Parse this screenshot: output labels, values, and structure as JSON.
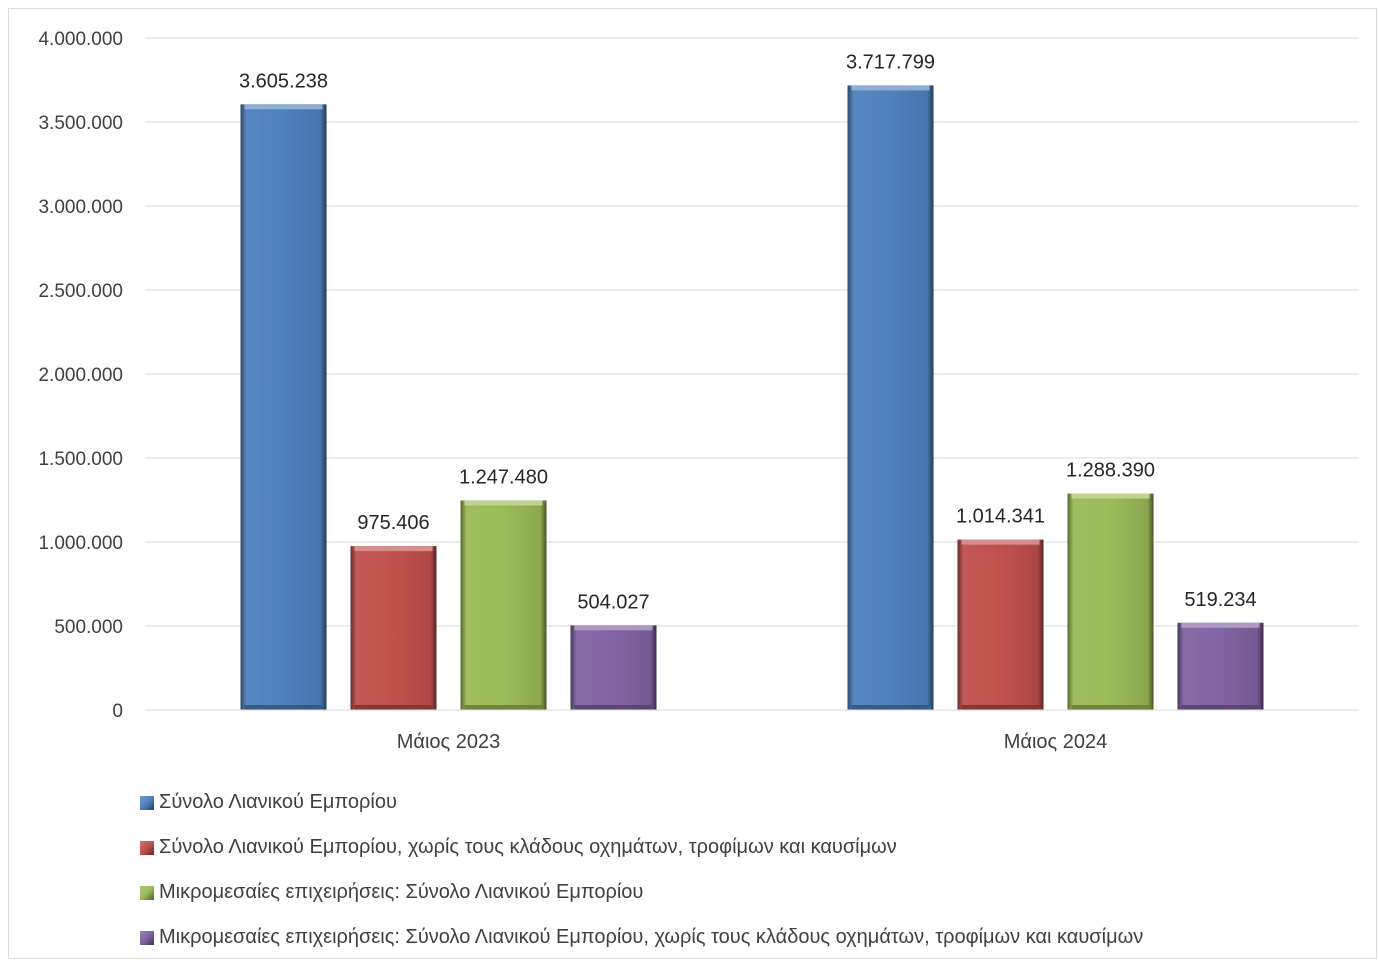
{
  "chart_data": {
    "type": "bar",
    "categories": [
      "Μάιος 2023",
      "Μάιος  2024"
    ],
    "series": [
      {
        "name": "Σύνολο Λιανικού Εμπορίου",
        "values": [
          3605238,
          3717799
        ],
        "labels": [
          "3.605.238",
          "3.717.799"
        ],
        "color": "#4f81bd"
      },
      {
        "name": "Σύνολο Λιανικού Εμπορίου, χωρίς τους κλάδους οχημάτων, τροφίμων και καυσίμων",
        "values": [
          975406,
          1014341
        ],
        "labels": [
          "975.406",
          "1.014.341"
        ],
        "color": "#c0504d"
      },
      {
        "name": "Μικρομεσαίες επιχειρήσεις: Σύνολο Λιανικού Εμπορίου",
        "values": [
          1247480,
          1288390
        ],
        "labels": [
          "1.247.480",
          "1.288.390"
        ],
        "color": "#9bbb59"
      },
      {
        "name": "Μικρομεσαίες επιχειρήσεις: Σύνολο Λιανικού Εμπορίου, χωρίς τους κλάδους οχημάτων, τροφίμων και καυσίμων",
        "values": [
          504027,
          519234
        ],
        "labels": [
          "504.027",
          "519.234"
        ],
        "color": "#8064a2"
      }
    ],
    "yticks": [
      0,
      500000,
      1000000,
      1500000,
      2000000,
      2500000,
      3000000,
      3500000,
      4000000
    ],
    "ytick_labels": [
      "0",
      "500.000",
      "1.000.000",
      "1.500.000",
      "2.000.000",
      "2.500.000",
      "3.000.000",
      "3.500.000",
      "4.000.000"
    ],
    "ylim": [
      0,
      4000000
    ],
    "grid": true,
    "legend_position": "bottom-left",
    "title": "",
    "xlabel": "",
    "ylabel": ""
  }
}
